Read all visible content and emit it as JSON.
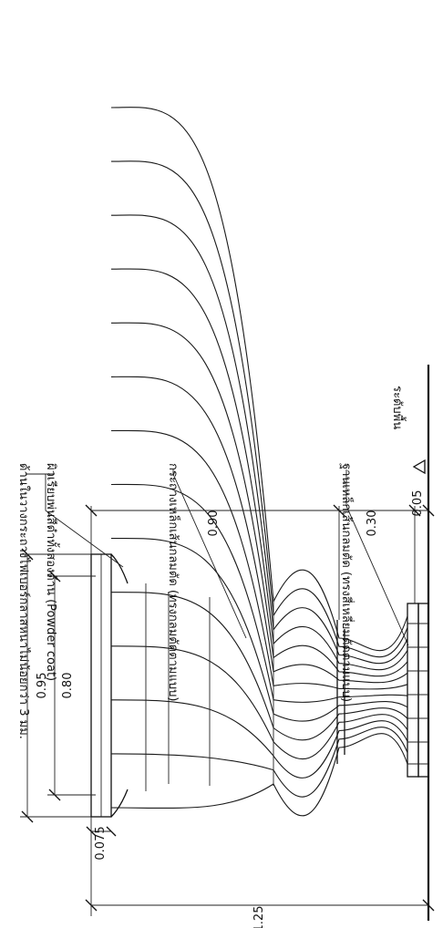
{
  "dimensions": {
    "total_height": "1.25",
    "rim_thickness": "0.075",
    "top_width_outer": "0.95",
    "top_width_inner": "0.80",
    "basket_height": "0.90",
    "base_height": "0.30",
    "base_plate": "0.05"
  },
  "notes": {
    "inner_basket_line1": "ด้านในวางกระถางไฟเบอร์กลาสหนาไม่น้อยกว่า 3 มม.",
    "inner_basket_line2": "ผิวเรียบพ่นสีดำทั้งสองด้าน (Powder coat)",
    "basket_steel": "กระถางเหล็กเส้นกลมตัด (ทรงกลมตัดตามแบบ)",
    "base_steel": "ฐานเหล็กเส้นกลมตัด (ทรงสี่เหลี่ยมตัดตามแบบ)",
    "floor_level": "ระดับพื้น"
  },
  "colors": {
    "ink": "#111111",
    "paper": "#ffffff"
  }
}
